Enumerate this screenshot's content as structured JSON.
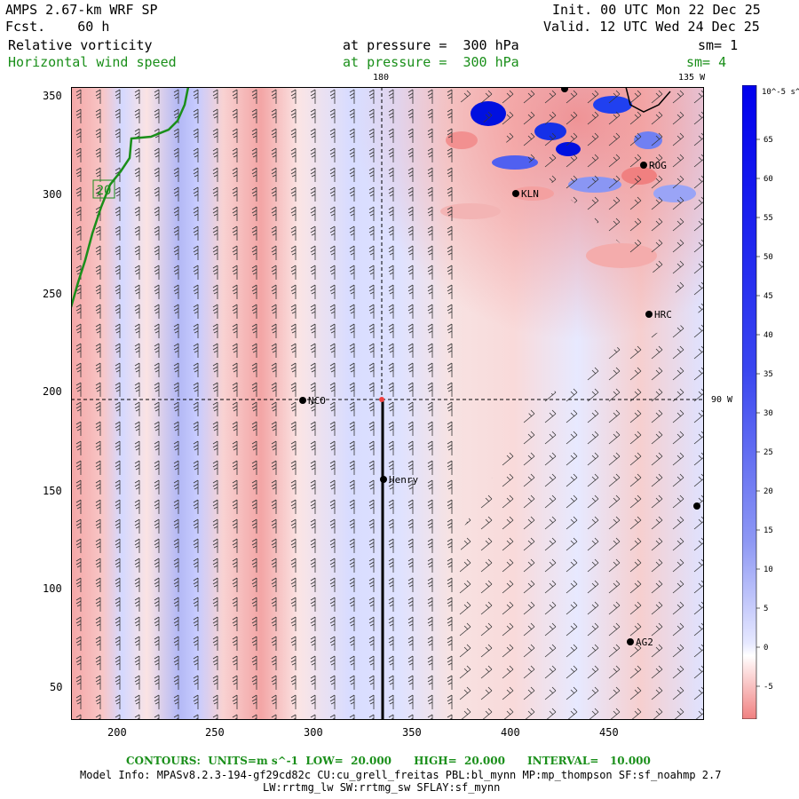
{
  "header": {
    "model_line": "AMPS 2.67-km WRF SP",
    "fcst_line": "Fcst.    60 h",
    "init_line": "Init. 00 UTC Mon 22 Dec 25",
    "valid_line": "Valid. 12 UTC Wed 24 Dec 25",
    "field1_label": "Relative vorticity",
    "field1_level": "at pressure =  300 hPa",
    "field1_sm": "sm= 1",
    "field2_label": "Horizontal wind speed",
    "field2_level": "at pressure =  300 hPa",
    "field2_sm": "sm= 4"
  },
  "colors": {
    "positive_max": "#0000ee",
    "positive_light": "#c8ccff",
    "negative_light": "#ffd0d0",
    "negative_max": "#f08080",
    "coast_green": "#1a8f1a"
  },
  "map": {
    "x_ticks": [
      "200",
      "250",
      "300",
      "350",
      "400",
      "450"
    ],
    "y_ticks": [
      "50",
      "100",
      "150",
      "200",
      "250",
      "300",
      "350"
    ],
    "meridian_top_label": "180",
    "meridian_135_label": "135 W",
    "parallel_label": "90 W",
    "contour_label": "20",
    "stations": [
      {
        "name": "ROG"
      },
      {
        "name": "KLN"
      },
      {
        "name": "HRC"
      },
      {
        "name": "NCO"
      },
      {
        "name": "Henry"
      },
      {
        "name": "AG2"
      },
      {
        "name": ""
      },
      {
        "name": ""
      }
    ]
  },
  "colorbar": {
    "units": "10^-5 s^-1",
    "labels": [
      "65",
      "60",
      "55",
      "50",
      "45",
      "40",
      "35",
      "30",
      "25",
      "20",
      "15",
      "10",
      "5",
      "0",
      "-5"
    ]
  },
  "footer": {
    "contours_line": "CONTOURS:  UNITS=m s^-1  LOW=  20.000      HIGH=  20.000      INTERVAL=   10.000",
    "model_info_line": "Model Info: MPASv8.2.3-194-gf29cd82c CU:cu_grell_freitas PBL:bl_mynn MP:mp_thompson SF:sf_noahmp 2.7",
    "physics_line": "LW:rrtmg_lw SW:rrtmg_sw SFLAY:sf_mynn"
  }
}
